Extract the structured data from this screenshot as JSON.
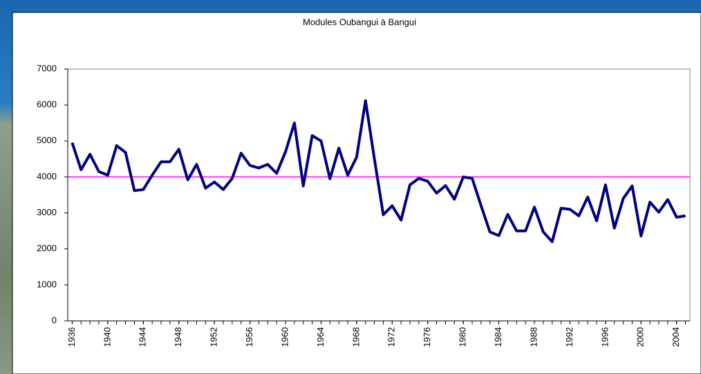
{
  "chart_data": {
    "type": "line",
    "title": "Modules  Oubangui à Bangui",
    "x": [
      1936,
      1937,
      1938,
      1939,
      1940,
      1941,
      1942,
      1943,
      1944,
      1945,
      1946,
      1947,
      1948,
      1949,
      1950,
      1951,
      1952,
      1953,
      1954,
      1955,
      1956,
      1957,
      1958,
      1959,
      1960,
      1961,
      1962,
      1963,
      1964,
      1965,
      1966,
      1967,
      1968,
      1969,
      1970,
      1971,
      1972,
      1973,
      1974,
      1975,
      1976,
      1977,
      1978,
      1979,
      1980,
      1981,
      1982,
      1983,
      1984,
      1985,
      1986,
      1987,
      1988,
      1989,
      1990,
      1991,
      1992,
      1993,
      1994,
      1995,
      1996,
      1997,
      1998,
      1999,
      2000,
      2001,
      2002,
      2003,
      2004,
      2005
    ],
    "series": [
      {
        "color": "#000080",
        "values": [
          4950,
          4200,
          4630,
          4150,
          4050,
          4870,
          4680,
          3620,
          3650,
          4050,
          4420,
          4420,
          4770,
          3920,
          4350,
          3690,
          3860,
          3650,
          3960,
          4660,
          4320,
          4250,
          4350,
          4100,
          4700,
          5500,
          3750,
          5150,
          5000,
          3950,
          4800,
          4050,
          4550,
          6120,
          4500,
          2950,
          3200,
          2800,
          3780,
          3960,
          3880,
          3550,
          3760,
          3380,
          4000,
          3960,
          3200,
          2470,
          2370,
          2960,
          2500,
          2500,
          3160,
          2470,
          2200,
          3130,
          3100,
          2920,
          3440,
          2780,
          3780,
          2580,
          3400,
          3750,
          2360,
          3300,
          3020,
          3370,
          2880,
          2920
        ]
      }
    ],
    "reference_line": {
      "value": 4000,
      "color": "#ff00ff"
    },
    "xlim": [
      1935.5,
      2005.5
    ],
    "xticks": [
      1936,
      1940,
      1944,
      1948,
      1952,
      1956,
      1960,
      1964,
      1968,
      1972,
      1976,
      1980,
      1984,
      1988,
      1992,
      1996,
      2000,
      2004
    ],
    "ylim": [
      0,
      7000
    ],
    "yticks": [
      0,
      1000,
      2000,
      3000,
      4000,
      5000,
      6000,
      7000
    ]
  }
}
